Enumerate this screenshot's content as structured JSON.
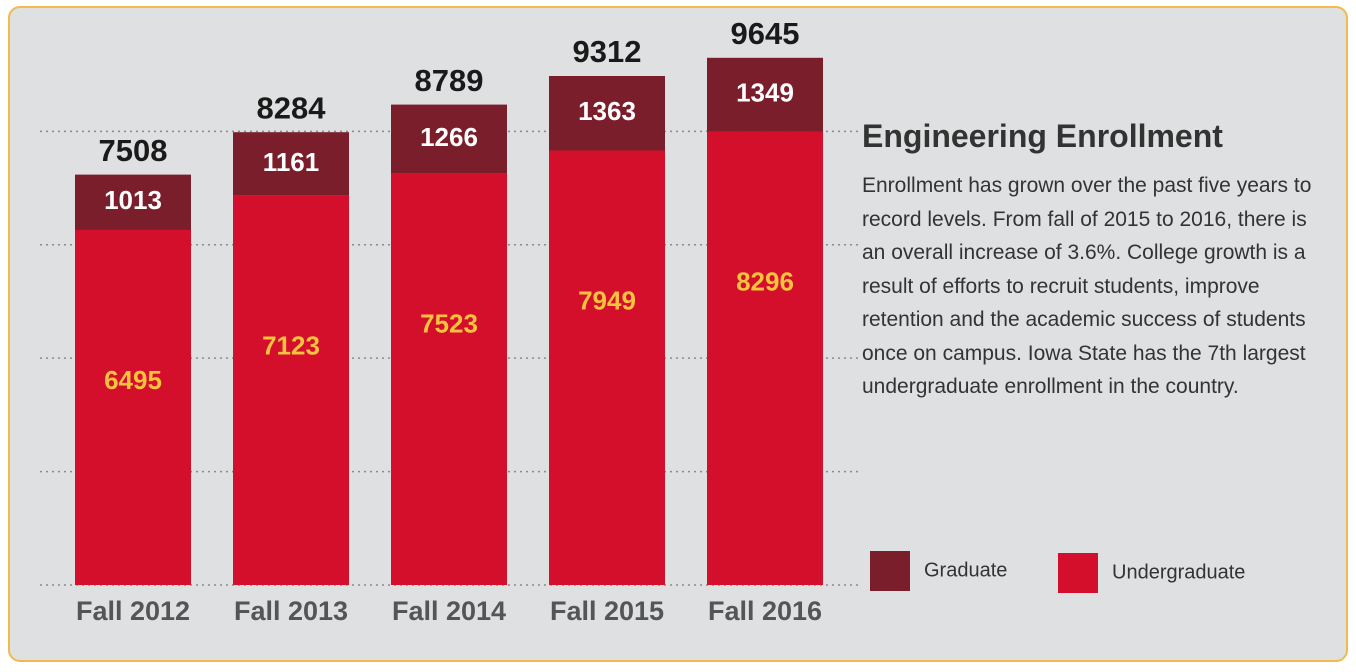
{
  "chart_data": {
    "type": "stacked_bar",
    "title": "Engineering Enrollment",
    "description": "Enrollment has grown over the past five years to record levels. From fall of 2015 to 2016, there is an overall increase of 3.6%. College growth is a result of efforts to recruit students, improve retention and the academic success of students once on campus. Iowa State has the 7th largest undergraduate enrollment in the country.",
    "categories": [
      "Fall 2012",
      "Fall 2013",
      "Fall 2014",
      "Fall 2015",
      "Fall 2016"
    ],
    "series": [
      {
        "name": "Undergraduate",
        "color": "#d40f2b",
        "values": [
          6495,
          7123,
          7523,
          7949,
          8296
        ]
      },
      {
        "name": "Graduate",
        "color": "#7b1e2b",
        "values": [
          1013,
          1161,
          1266,
          1363,
          1349
        ]
      }
    ],
    "totals": [
      7508,
      8284,
      8789,
      9312,
      9645
    ],
    "ylim": [
      0,
      10000
    ],
    "yticks": [
      0,
      2075,
      4150,
      6225,
      8300
    ],
    "grid": true
  }
}
